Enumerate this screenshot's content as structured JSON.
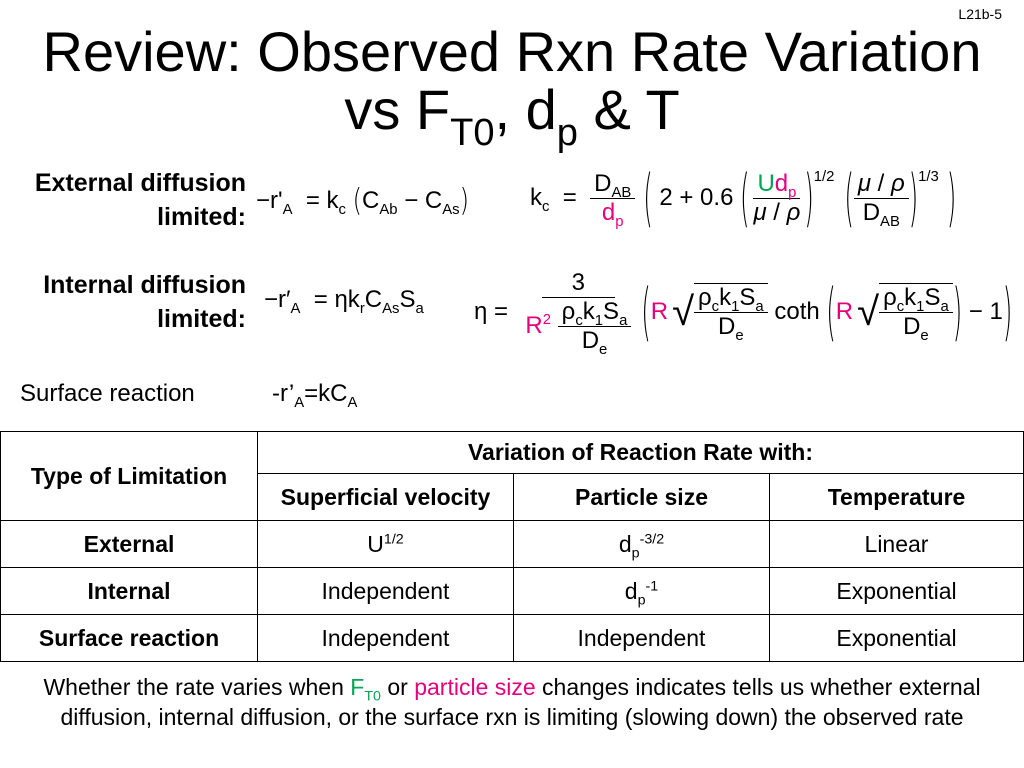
{
  "slide_number": "L21b-5",
  "title": {
    "line1": "Review: Observed Rxn Rate Variation",
    "line2_prefix": "vs F",
    "line2_sub1": "T0",
    "line2_mid": ", d",
    "line2_sub2": "p",
    "line2_suffix": " & T"
  },
  "labels": {
    "external": "External diffusion limited:",
    "internal": "Internal diffusion limited:",
    "surface": "Surface reaction"
  },
  "equations": {
    "surface_rate": "-r’",
    "surface_sub": "A",
    "surface_rhs": "=kC",
    "surface_rhs_sub": "A"
  },
  "table": {
    "header_type": "Type of Limitation",
    "header_group": "Variation of Reaction Rate with:",
    "columns": [
      "Superficial velocity",
      "Particle size",
      "Temperature"
    ],
    "rows": [
      {
        "type": "External",
        "velocity_base": "U",
        "velocity_exp": "1/2",
        "size_base": "d",
        "size_sub": "p",
        "size_exp": "-3/2",
        "temperature": "Linear"
      },
      {
        "type": "Internal",
        "velocity": "Independent",
        "size_base": "d",
        "size_sub": "p",
        "size_exp": "-1",
        "temperature": "Exponential"
      },
      {
        "type": "Surface reaction",
        "velocity": "Independent",
        "size": "Independent",
        "temperature": "Exponential"
      }
    ]
  },
  "footer": {
    "part1": "Whether the rate varies when ",
    "f": "F",
    "f_sub": "T0",
    "part2": " or ",
    "particle": "particle size",
    "part3": " changes indicates tells us whether external diffusion, internal diffusion, or the surface rxn is limiting (slowing down) the observed rate"
  },
  "colors": {
    "highlight": "#e6007e",
    "accent": "#00a651"
  }
}
